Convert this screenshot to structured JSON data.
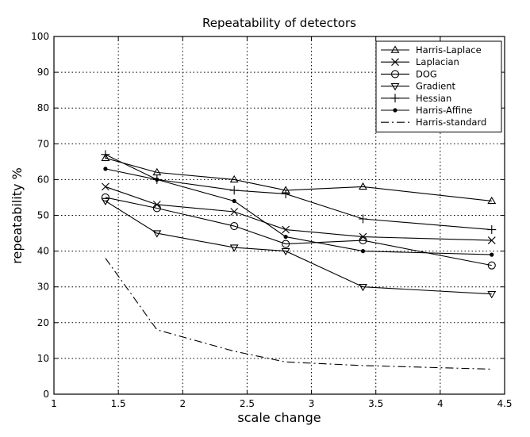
{
  "chart_data": {
    "type": "line",
    "title": "Repeatability of detectors",
    "xlabel": "scale change",
    "ylabel": "repeatability %",
    "xlim": [
      1,
      4.5
    ],
    "ylim": [
      0,
      100
    ],
    "xticks": [
      1,
      1.5,
      2,
      2.5,
      3,
      3.5,
      4,
      4.5
    ],
    "xtick_labels": [
      "1",
      "1.5",
      "2",
      "2.5",
      "3",
      "3.5",
      "4",
      "4.5"
    ],
    "yticks": [
      0,
      10,
      20,
      30,
      40,
      50,
      60,
      70,
      80,
      90,
      100
    ],
    "ytick_labels": [
      "0",
      "10",
      "20",
      "30",
      "40",
      "50",
      "60",
      "70",
      "80",
      "90",
      "100"
    ],
    "grid": true,
    "legend_position": "top-right",
    "series": [
      {
        "name": "Harris-Laplace",
        "marker": "triangle-up",
        "dash": "solid",
        "x": [
          1.4,
          1.8,
          2.4,
          2.8,
          3.4,
          4.4
        ],
        "y": [
          66,
          62,
          60,
          57,
          58,
          54
        ]
      },
      {
        "name": "Laplacian",
        "marker": "x",
        "dash": "solid",
        "x": [
          1.4,
          1.8,
          2.4,
          2.8,
          3.4,
          4.4
        ],
        "y": [
          58,
          53,
          51,
          46,
          44,
          43
        ]
      },
      {
        "name": "DOG",
        "marker": "circle",
        "dash": "solid",
        "x": [
          1.4,
          1.8,
          2.4,
          2.8,
          3.4,
          4.4
        ],
        "y": [
          55,
          52,
          47,
          42,
          43,
          36
        ]
      },
      {
        "name": "Gradient",
        "marker": "triangle-down",
        "dash": "solid",
        "x": [
          1.4,
          1.8,
          2.4,
          2.8,
          3.4,
          4.4
        ],
        "y": [
          54,
          45,
          41,
          40,
          30,
          28
        ]
      },
      {
        "name": "Hessian",
        "marker": "plus",
        "dash": "solid",
        "x": [
          1.4,
          1.8,
          2.4,
          2.8,
          3.4,
          4.4
        ],
        "y": [
          67,
          60,
          57,
          56,
          49,
          46
        ]
      },
      {
        "name": "Harris-Affine",
        "marker": "dot",
        "dash": "solid",
        "x": [
          1.4,
          1.8,
          2.4,
          2.8,
          3.4,
          4.4
        ],
        "y": [
          63,
          60,
          54,
          44,
          40,
          39
        ]
      },
      {
        "name": "Harris-standard",
        "marker": "none",
        "dash": "dashdot",
        "x": [
          1.4,
          1.8,
          2.4,
          2.8,
          3.4,
          4.4
        ],
        "y": [
          38,
          18,
          12,
          9,
          8,
          7
        ]
      }
    ]
  }
}
